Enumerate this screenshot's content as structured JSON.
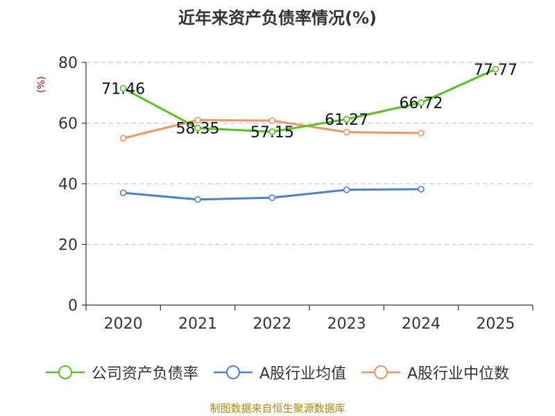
{
  "chart_data": {
    "type": "line",
    "title": "近年来资产负债率情况(%)",
    "ylabel": "(%)",
    "categories": [
      "2020",
      "2021",
      "2022",
      "2023",
      "2024",
      "2025"
    ],
    "ylim": [
      0,
      80
    ],
    "yticks": [
      0,
      20,
      40,
      60,
      80
    ],
    "grid": true,
    "legend_position": "bottom",
    "series": [
      {
        "name": "公司资产负债率",
        "color": "#52c41a",
        "show_labels": true,
        "values": [
          71.46,
          58.35,
          57.15,
          61.27,
          66.72,
          77.77
        ]
      },
      {
        "name": "A股行业均值",
        "color": "#4a7fd8",
        "show_labels": false,
        "values": [
          37.0,
          34.8,
          35.4,
          38.0,
          38.2,
          null
        ]
      },
      {
        "name": "A股行业中位数",
        "color": "#f5925e",
        "show_labels": false,
        "values": [
          55.0,
          61.0,
          60.8,
          57.0,
          56.7,
          null
        ]
      }
    ]
  },
  "footer": {
    "source": "制图数据来自恒生聚源数据库"
  }
}
